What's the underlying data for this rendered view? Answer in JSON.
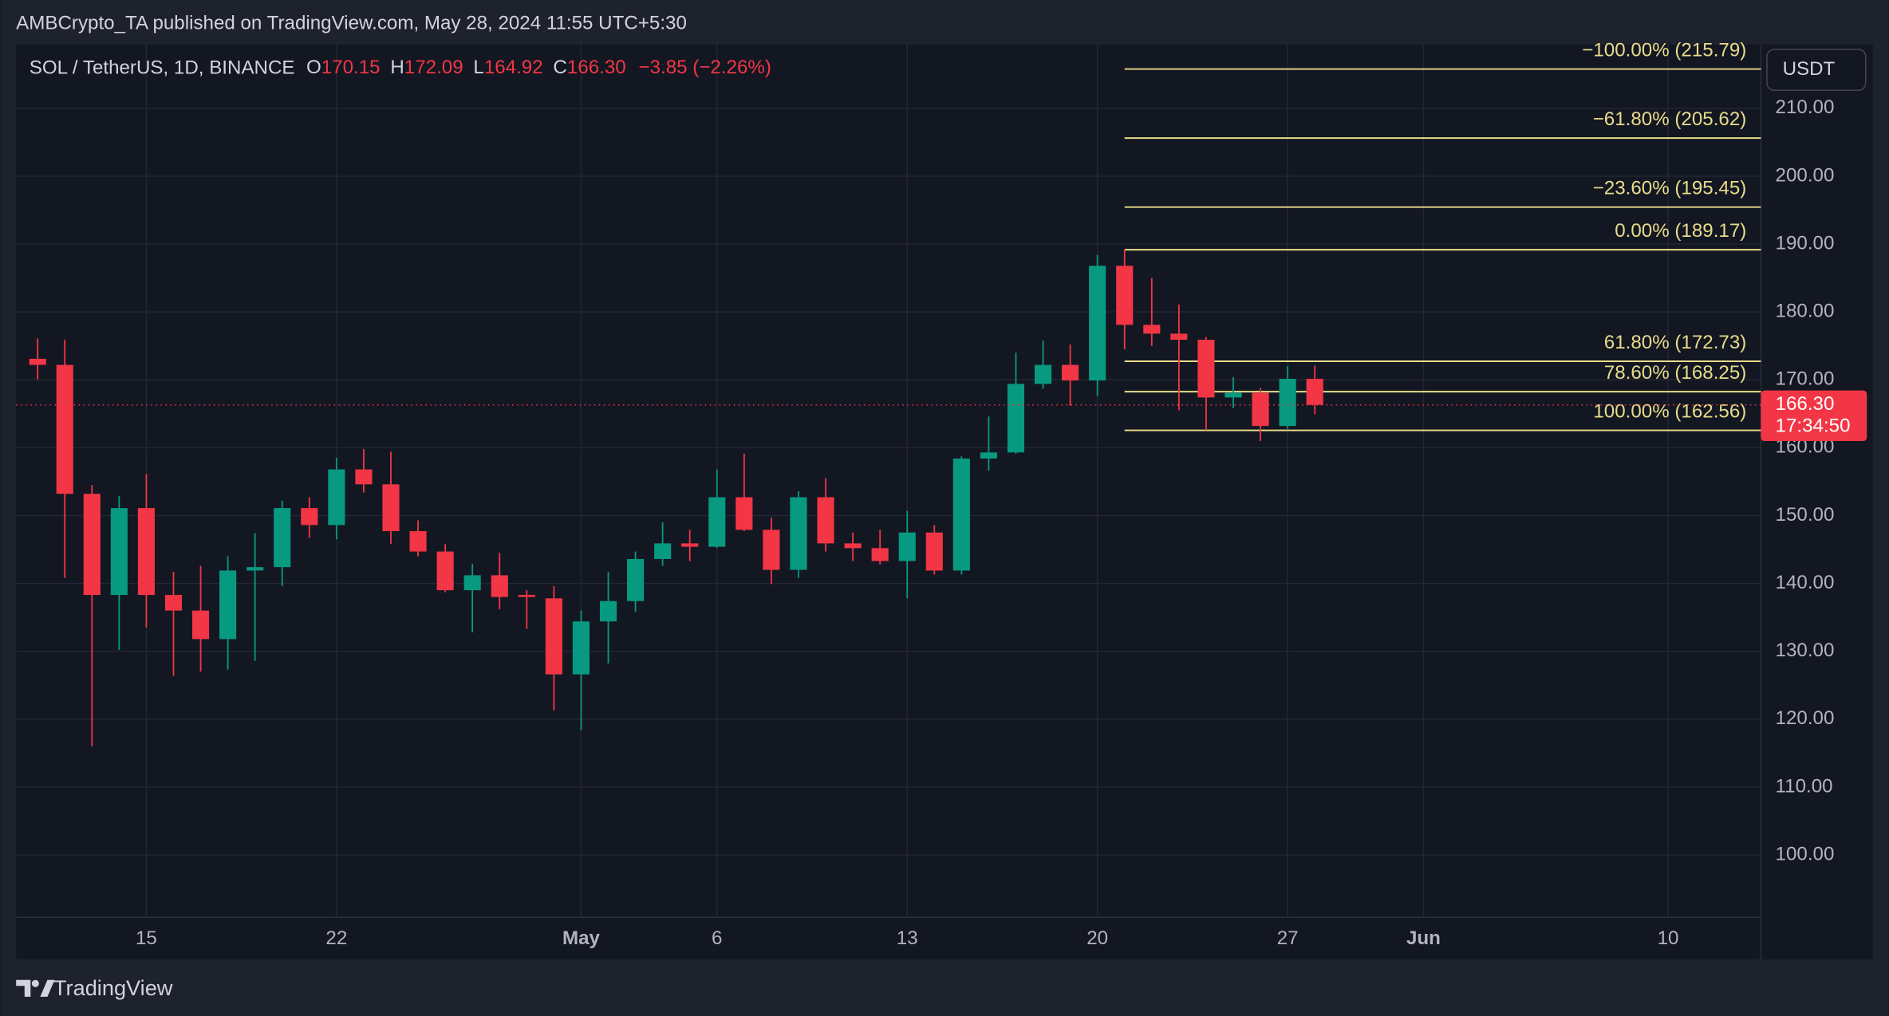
{
  "chart_data": {
    "type": "candlestick",
    "header": "AMBCrypto_TA published on TradingView.com, May 28, 2024 11:55 UTC+5:30",
    "symbol": "SOL / TetherUS, 1D, BINANCE",
    "legend": {
      "open_label": "O",
      "open": 170.15,
      "high_label": "H",
      "high": 172.09,
      "low_label": "L",
      "low": 164.92,
      "close_label": "C",
      "close": 166.3,
      "close_text": "166.30",
      "change": "−3.85 (−2.26%)"
    },
    "currency": "USDT",
    "brand": "TradingView",
    "up_color": "#089981",
    "down_color": "#f23645",
    "grid": true,
    "x": [
      "2024-04-11",
      "2024-04-12",
      "2024-04-13",
      "2024-04-14",
      "2024-04-15",
      "2024-04-16",
      "2024-04-17",
      "2024-04-18",
      "2024-04-19",
      "2024-04-20",
      "2024-04-21",
      "2024-04-22",
      "2024-04-23",
      "2024-04-24",
      "2024-04-25",
      "2024-04-26",
      "2024-04-27",
      "2024-04-28",
      "2024-04-29",
      "2024-04-30",
      "2024-05-01",
      "2024-05-02",
      "2024-05-03",
      "2024-05-04",
      "2024-05-05",
      "2024-05-06",
      "2024-05-07",
      "2024-05-08",
      "2024-05-09",
      "2024-05-10",
      "2024-05-11",
      "2024-05-12",
      "2024-05-13",
      "2024-05-14",
      "2024-05-15",
      "2024-05-16",
      "2024-05-17",
      "2024-05-18",
      "2024-05-19",
      "2024-05-20",
      "2024-05-21",
      "2024-05-22",
      "2024-05-23",
      "2024-05-24",
      "2024-05-25",
      "2024-05-26",
      "2024-05-27",
      "2024-05-28"
    ],
    "open": [
      173.1,
      172.2,
      153.2,
      138.3,
      151.1,
      138.3,
      136.0,
      131.8,
      141.9,
      142.4,
      151.1,
      148.6,
      156.8,
      154.6,
      147.7,
      144.7,
      139.0,
      141.2,
      138.3,
      137.8,
      126.6,
      134.4,
      137.4,
      143.6,
      145.9,
      145.4,
      152.7,
      147.9,
      142.0,
      152.7,
      145.9,
      145.2,
      143.3,
      147.5,
      141.9,
      158.4,
      159.3,
      169.4,
      172.2,
      169.9,
      186.8,
      178.1,
      176.8,
      175.9,
      167.4,
      168.1,
      163.2,
      170.15
    ],
    "high": [
      176.1,
      175.9,
      154.5,
      152.9,
      156.1,
      141.7,
      142.6,
      144.0,
      147.4,
      152.2,
      152.7,
      158.5,
      159.8,
      159.4,
      149.3,
      145.8,
      142.9,
      144.5,
      139.0,
      139.6,
      136.0,
      141.7,
      144.7,
      149.0,
      147.9,
      156.8,
      159.1,
      149.7,
      153.6,
      155.5,
      147.5,
      147.9,
      150.7,
      148.6,
      158.7,
      164.6,
      174.0,
      175.8,
      175.2,
      188.4,
      189.17,
      185.0,
      181.1,
      176.3,
      170.4,
      168.8,
      172.0,
      172.09
    ],
    "low": [
      170.1,
      140.8,
      116.0,
      130.2,
      133.5,
      126.4,
      127.0,
      127.3,
      128.6,
      139.6,
      146.7,
      146.5,
      153.4,
      145.8,
      144.0,
      138.7,
      132.8,
      136.2,
      133.3,
      121.3,
      118.4,
      128.2,
      135.8,
      142.6,
      143.3,
      145.2,
      147.7,
      139.9,
      140.8,
      144.7,
      143.3,
      142.8,
      137.8,
      141.3,
      141.3,
      156.6,
      159.1,
      168.7,
      166.2,
      167.6,
      174.5,
      175.0,
      165.5,
      162.56,
      165.8,
      161.0,
      162.8,
      164.92
    ],
    "close": [
      172.2,
      153.2,
      138.3,
      151.1,
      138.3,
      136.0,
      131.8,
      141.9,
      142.4,
      151.1,
      148.6,
      156.8,
      154.6,
      147.7,
      144.7,
      139.0,
      141.2,
      138.0,
      138.0,
      126.6,
      134.4,
      137.4,
      143.6,
      145.9,
      145.4,
      152.7,
      147.9,
      142.0,
      152.7,
      145.9,
      145.2,
      143.3,
      147.5,
      141.9,
      158.4,
      159.3,
      169.4,
      172.2,
      169.9,
      186.8,
      178.1,
      176.8,
      175.9,
      167.4,
      168.1,
      163.2,
      170.15,
      166.3
    ],
    "xlim": [
      "2024-04-10T05:00:00Z",
      "2024-06-13T10:00:00Z"
    ],
    "xticks": [
      {
        "value": "2024-04-15",
        "label": "15"
      },
      {
        "value": "2024-04-22",
        "label": "22"
      },
      {
        "value": "2024-05-01",
        "label": "May"
      },
      {
        "value": "2024-05-06",
        "label": "6"
      },
      {
        "value": "2024-05-13",
        "label": "13"
      },
      {
        "value": "2024-05-20",
        "label": "20"
      },
      {
        "value": "2024-05-27",
        "label": "27"
      },
      {
        "value": "2024-06-01",
        "label": "Jun"
      },
      {
        "value": "2024-06-10",
        "label": "10"
      }
    ],
    "ylim": [
      84.6,
      219.4
    ],
    "yticks": [
      {
        "value": 100,
        "label": "100.00"
      },
      {
        "value": 110,
        "label": "110.00"
      },
      {
        "value": 120,
        "label": "120.00"
      },
      {
        "value": 130,
        "label": "130.00"
      },
      {
        "value": 140,
        "label": "140.00"
      },
      {
        "value": 150,
        "label": "150.00"
      },
      {
        "value": 160,
        "label": "160.00"
      },
      {
        "value": 170,
        "label": "170.00"
      },
      {
        "value": 180,
        "label": "180.00"
      },
      {
        "value": 190,
        "label": "190.00"
      },
      {
        "value": 200,
        "label": "200.00"
      },
      {
        "value": 210,
        "label": "210.00"
      }
    ],
    "fib_start": "2024-05-21",
    "fib_color": "#e8dc8a",
    "fib_levels": [
      {
        "value": 215.79,
        "label": "−100.00% (215.79)"
      },
      {
        "value": 205.62,
        "label": "−61.80% (205.62)"
      },
      {
        "value": 195.45,
        "label": "−23.60% (195.45)"
      },
      {
        "value": 189.17,
        "label": "0.00% (189.17)"
      },
      {
        "value": 172.73,
        "label": "61.80% (172.73)"
      },
      {
        "value": 168.25,
        "label": "78.60% (168.25)"
      },
      {
        "value": 162.56,
        "label": "100.00% (162.56)"
      }
    ],
    "last_price": {
      "value": 166.3,
      "label": "166.30"
    },
    "countdown": "17:34:50"
  }
}
